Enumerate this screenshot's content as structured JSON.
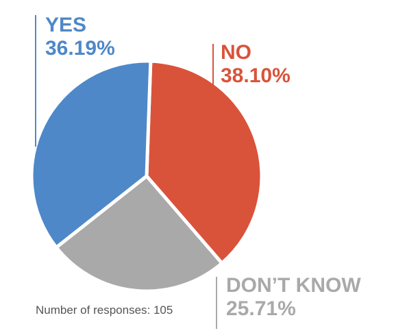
{
  "chart_data": {
    "type": "pie",
    "slices": [
      {
        "label": "YES",
        "value": 36.19,
        "display": "36.19%",
        "color": "#4e88c8"
      },
      {
        "label": "NO",
        "value": 38.1,
        "display": "38.10%",
        "color": "#d9533a"
      },
      {
        "label": "DON’T KNOW",
        "value": 25.71,
        "display": "25.71%",
        "color": "#a9a9a9"
      }
    ],
    "note": "Number of responses: 105"
  }
}
